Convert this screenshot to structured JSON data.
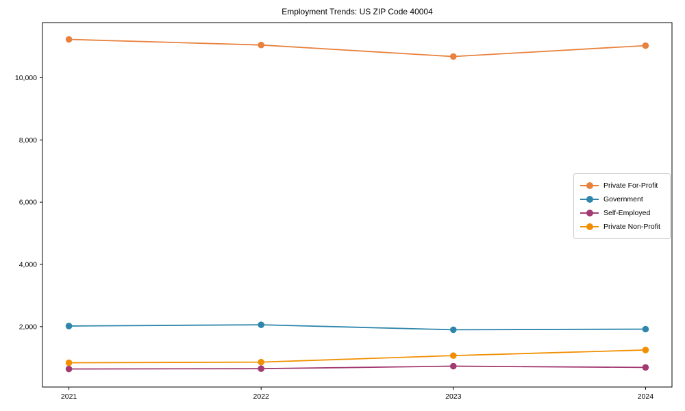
{
  "page": {
    "background": "#ffffff"
  },
  "chart_data": {
    "type": "line",
    "title": "Employment Trends: US ZIP Code 40004",
    "xlabel": "",
    "ylabel": "",
    "x": [
      2021,
      2022,
      2023,
      2024
    ],
    "x_tick_labels": [
      "2021",
      "2022",
      "2023",
      "2024"
    ],
    "series": [
      {
        "name": "Private For-Profit",
        "color": "#E8813D",
        "values": [
          11230,
          11050,
          10680,
          11030
        ]
      },
      {
        "name": "Government",
        "color": "#2E86AB",
        "values": [
          2020,
          2060,
          1900,
          1920
        ]
      },
      {
        "name": "Self-Employed",
        "color": "#A23B72",
        "values": [
          640,
          650,
          730,
          690
        ]
      },
      {
        "name": "Private Non-Profit",
        "color": "#F18F01",
        "values": [
          840,
          860,
          1070,
          1250
        ]
      }
    ],
    "y_ticks": [
      2000,
      4000,
      6000,
      8000,
      10000
    ],
    "y_tick_labels": [
      "2,000",
      "4,000",
      "6,000",
      "8,000",
      "10,000"
    ],
    "ylim": [
      60,
      11770
    ],
    "x_margin_frac": 0.042,
    "grid": false,
    "legend_position": "center-right",
    "legend_entries": [
      "Private For-Profit",
      "Government",
      "Self-Employed",
      "Private Non-Profit"
    ],
    "marker": "circle"
  }
}
